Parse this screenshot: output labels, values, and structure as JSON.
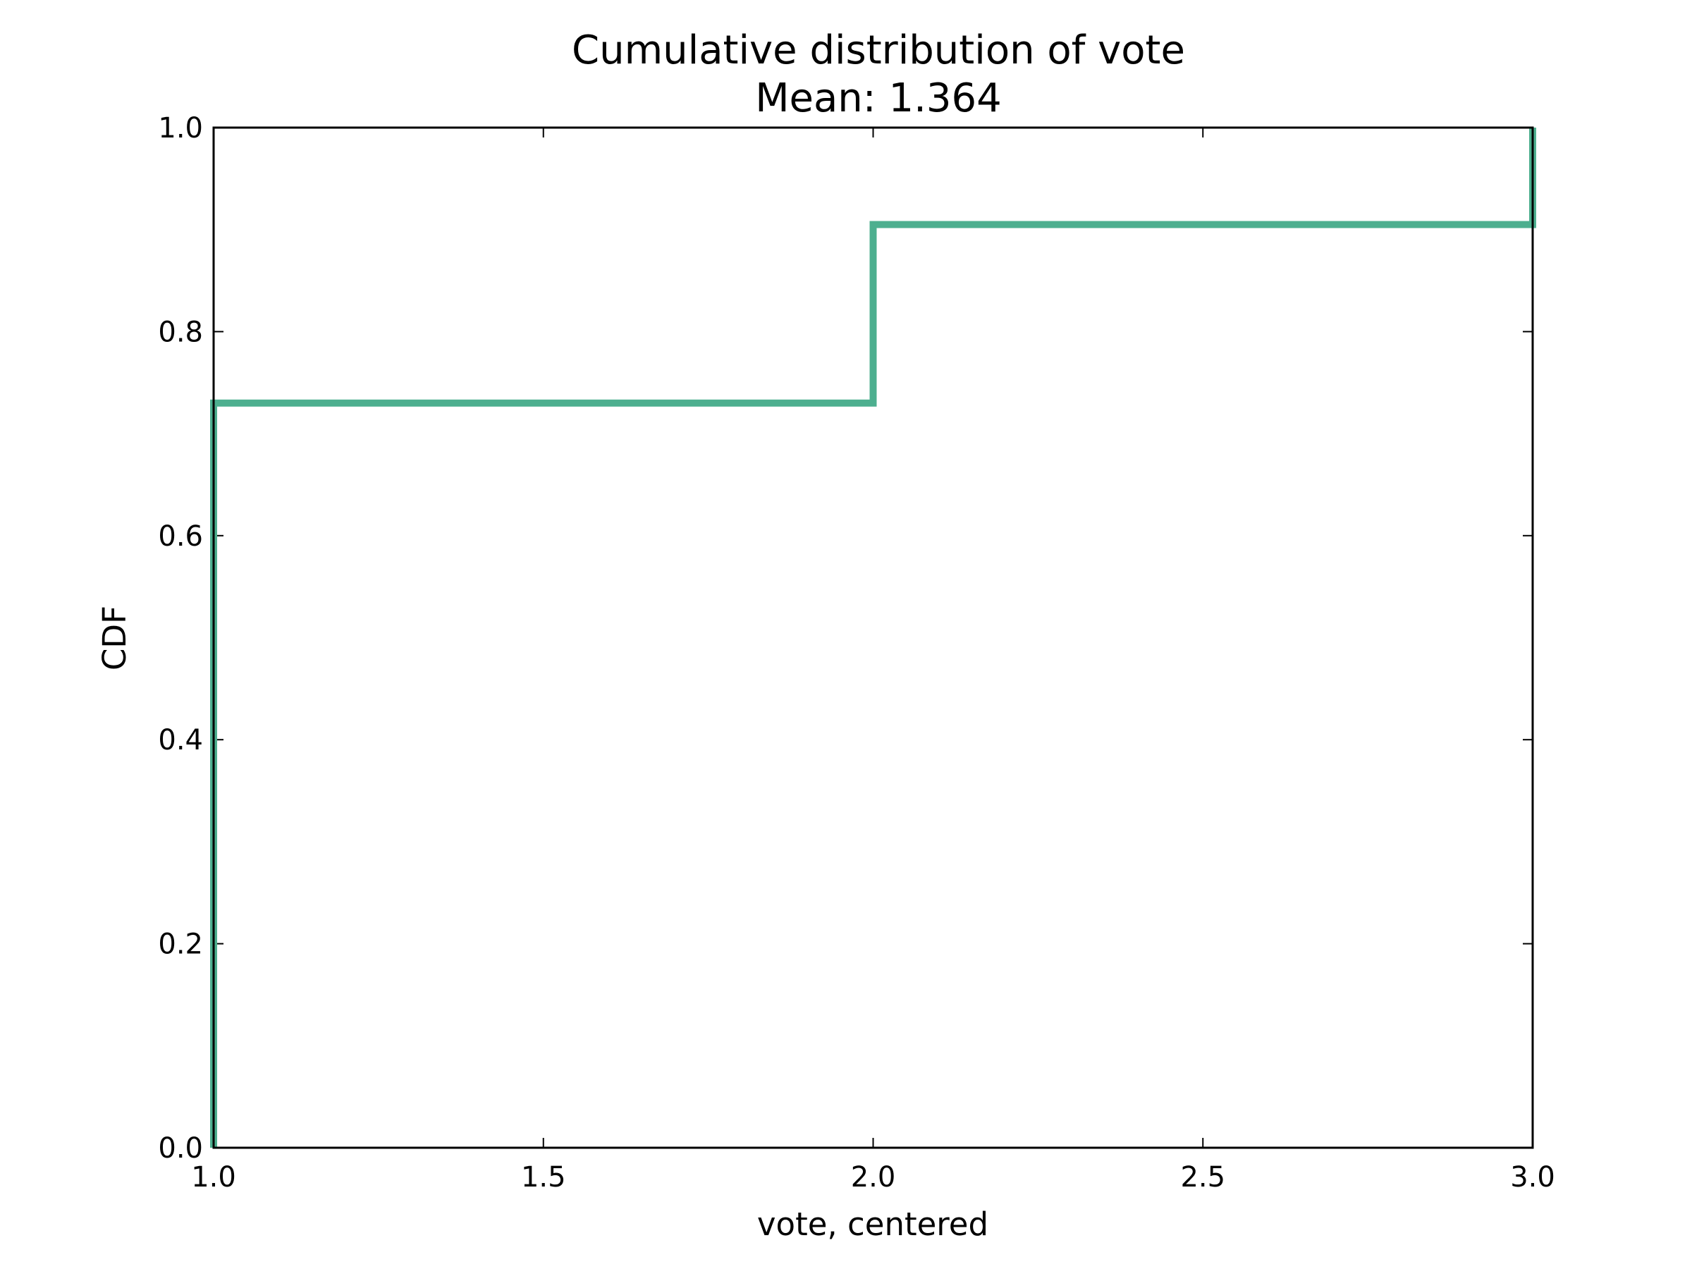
{
  "chart_data": {
    "type": "line",
    "step": "post",
    "title_lines": [
      "Cumulative distribution of vote",
      "Mean: 1.364"
    ],
    "xlabel": "vote, centered",
    "ylabel": "CDF",
    "xlim": [
      1.0,
      3.0
    ],
    "ylim": [
      0.0,
      1.0
    ],
    "xticks": [
      1.0,
      1.5,
      2.0,
      2.5,
      3.0
    ],
    "xtick_labels": [
      "1.0",
      "1.5",
      "2.0",
      "2.5",
      "3.0"
    ],
    "yticks": [
      0.0,
      0.2,
      0.4,
      0.6,
      0.8,
      1.0
    ],
    "ytick_labels": [
      "0.0",
      "0.2",
      "0.4",
      "0.6",
      "0.8",
      "1.0"
    ],
    "grid": false,
    "series": [
      {
        "color": "#4daf8f",
        "x": [
          1.0,
          1.0,
          2.0,
          2.0,
          3.0,
          3.0
        ],
        "y": [
          0.0,
          0.73,
          0.73,
          0.905,
          0.905,
          1.0
        ]
      }
    ]
  }
}
